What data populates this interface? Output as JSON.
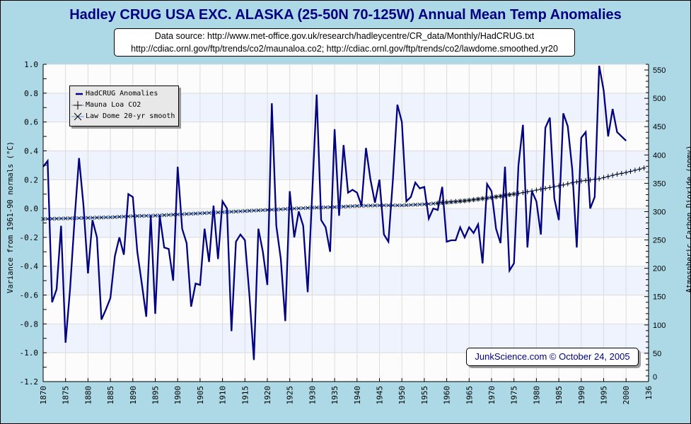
{
  "title": "Hadley CRUG USA EXC. ALASKA (25-50N 70-125W) Annual Mean Temp Anomalies",
  "source_lines": [
    "Data source: http://www.met-office.gov.uk/research/hadleycentre/CR_data/Monthly/HadCRUG.txt",
    "http://cdiac.ornl.gov/ftp/trends/co2/maunaloa.co2; http://cdiac.ornl.gov/ftp/trends/co2/lawdome.smoothed.yr20"
  ],
  "credit": "JunkScience.com © October 24, 2005",
  "colors": {
    "background": "#add8e6",
    "plot_bg": "#fcfcfc",
    "band": "#eef3fd",
    "grid": "#dcdcdc",
    "anomaly_line": "#000080",
    "co2_line": "#6495ed",
    "marker": "#000000"
  },
  "chart_data": {
    "type": "line",
    "title": "Hadley CRUG USA EXC. ALASKA (25-50N 70-125W) Annual Mean Temp Anomalies",
    "xlabel": "",
    "ylabel": "Variance from 1961-90 normals (°C)",
    "y2label": "Atmospheric Carbon Dioxide (ppmv)",
    "xlim": [
      1870,
      2005
    ],
    "ylim": [
      -1.2,
      1.0
    ],
    "y2lim": [
      0,
      560
    ],
    "x_ticks": [
      "1870",
      "1875",
      "1880",
      "1885",
      "1890",
      "1895",
      "1900",
      "1905",
      "1910",
      "1915",
      "1920",
      "1925",
      "1930",
      "1935",
      "1940",
      "1945",
      "1950",
      "1955",
      "1960",
      "1965",
      "1970",
      "1975",
      "1980",
      "1985",
      "1990",
      "1995",
      "2000",
      "136"
    ],
    "y_ticks": [
      "1.0",
      "0.8",
      "0.6",
      "0.4",
      "0.2",
      "0.0",
      "-0.2",
      "-0.4",
      "-0.6",
      "-0.8",
      "-1.0",
      "-1.2"
    ],
    "y2_ticks": [
      "550",
      "500",
      "450",
      "400",
      "350",
      "300",
      "250",
      "200",
      "150",
      "100",
      "50",
      "0"
    ],
    "grid": true,
    "legend_position": "top-left",
    "legend": [
      "HadCRUG Anomalies",
      "Mauna Loa CO2",
      "Law Dome 20-yr smooth"
    ],
    "series": [
      {
        "name": "HadCRUG Anomalies",
        "axis": "left",
        "x_start": 1870,
        "values": [
          0.29,
          0.33,
          -0.65,
          -0.56,
          -0.12,
          -0.93,
          -0.56,
          -0.08,
          0.35,
          0.02,
          -0.45,
          -0.08,
          -0.2,
          -0.77,
          -0.7,
          -0.62,
          -0.33,
          -0.2,
          -0.32,
          0.1,
          0.08,
          -0.3,
          -0.52,
          -0.75,
          -0.05,
          -0.73,
          -0.05,
          -0.27,
          -0.28,
          -0.5,
          0.29,
          -0.14,
          -0.24,
          -0.68,
          -0.52,
          -0.53,
          -0.14,
          -0.37,
          0.02,
          -0.35,
          0.05,
          0.0,
          -0.85,
          -0.23,
          -0.18,
          -0.22,
          -0.6,
          -1.05,
          -0.14,
          -0.3,
          -0.53,
          0.73,
          -0.12,
          -0.35,
          -0.78,
          0.12,
          -0.2,
          -0.02,
          -0.12,
          -0.58,
          0.1,
          0.79,
          -0.08,
          -0.13,
          -0.3,
          0.55,
          -0.05,
          0.44,
          0.11,
          0.13,
          0.11,
          0.02,
          0.42,
          0.2,
          0.04,
          0.2,
          -0.18,
          -0.23,
          0.2,
          0.72,
          0.6,
          0.05,
          0.08,
          0.18,
          0.14,
          0.15,
          -0.07,
          0.0,
          -0.01,
          0.15,
          -0.23,
          -0.22,
          -0.22,
          -0.13,
          -0.2,
          -0.13,
          -0.17,
          -0.11,
          -0.38,
          0.17,
          0.12,
          -0.14,
          -0.24,
          0.29,
          -0.43,
          -0.38,
          0.3,
          0.58,
          -0.27,
          0.12,
          0.05,
          -0.18,
          0.56,
          0.63,
          0.07,
          -0.08,
          0.66,
          0.57,
          0.27,
          -0.27,
          0.49,
          0.53,
          0.0,
          0.08,
          0.99,
          0.82,
          0.5,
          0.69,
          0.53,
          0.5,
          0.47
        ]
      },
      {
        "name": "Law Dome 20-yr smooth",
        "axis": "right",
        "x": [
          1870,
          1875,
          1880,
          1885,
          1890,
          1895,
          1900,
          1905,
          1910,
          1915,
          1920,
          1925,
          1930,
          1935,
          1940,
          1945,
          1950,
          1955,
          1960,
          1965,
          1970,
          1975
        ],
        "values": [
          287,
          288,
          289,
          290,
          292,
          293,
          295,
          297,
          299,
          301,
          303,
          305,
          307,
          308,
          310,
          311,
          311,
          313,
          316,
          320,
          325,
          331
        ]
      },
      {
        "name": "Mauna Loa CO2",
        "axis": "right",
        "x": [
          1958,
          1960,
          1962,
          1964,
          1966,
          1968,
          1970,
          1972,
          1974,
          1976,
          1978,
          1980,
          1982,
          1984,
          1986,
          1988,
          1990,
          1992,
          1994,
          1996,
          1998,
          2000,
          2002,
          2004
        ],
        "values": [
          315,
          317,
          318,
          319,
          321,
          323,
          325,
          327,
          330,
          332,
          335,
          338,
          341,
          344,
          347,
          351,
          354,
          356,
          358,
          362,
          366,
          369,
          373,
          377
        ]
      }
    ]
  }
}
